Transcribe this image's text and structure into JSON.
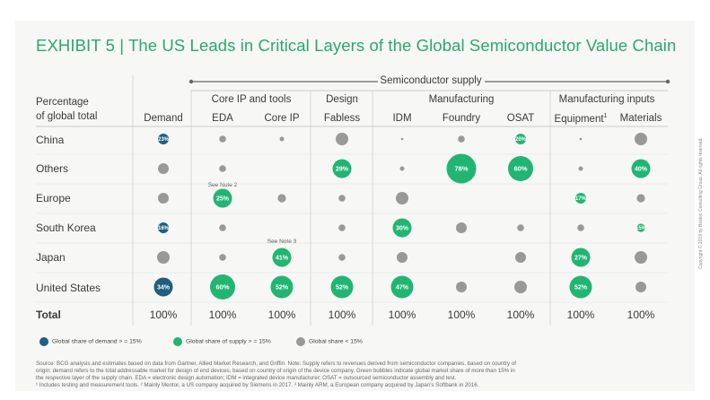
{
  "title": "EXHIBIT 5 | The US Leads in Critical Layers of the Global Semiconductor Value Chain",
  "colors": {
    "demand": "#1f5f80",
    "supply": "#21b573",
    "gray": "#999999",
    "title": "#2aa86b"
  },
  "chart_data": {
    "type": "bubble-table",
    "row_header": [
      "Percentage",
      "of global total"
    ],
    "supergroup": "Semiconductor supply",
    "groups": [
      {
        "label": "Core IP and tools"
      },
      {
        "label": "Design"
      },
      {
        "label": "Manufacturing"
      },
      {
        "label": "Manufacturing inputs"
      }
    ],
    "columns": [
      {
        "label": "Demand"
      },
      {
        "label": "EDA"
      },
      {
        "label": "Core IP"
      },
      {
        "label": "Fabless"
      },
      {
        "label": "IDM"
      },
      {
        "label": "Foundry"
      },
      {
        "label": "OSAT"
      },
      {
        "label": "Equipment",
        "sup": "1"
      },
      {
        "label": "Materials"
      }
    ],
    "rows": [
      {
        "label": "China",
        "cells": [
          {
            "kind": "demand",
            "label": "23%",
            "size": "m"
          },
          {
            "kind": "gray",
            "size": "s"
          },
          {
            "kind": "gray",
            "size": "xs"
          },
          {
            "kind": "gray",
            "size": "l"
          },
          {
            "kind": "gray",
            "size": "xxs"
          },
          {
            "kind": "gray",
            "size": "s"
          },
          {
            "kind": "supply",
            "label": "20%",
            "size": "m"
          },
          {
            "kind": "gray",
            "size": "xxs"
          },
          {
            "kind": "gray",
            "size": "l"
          }
        ]
      },
      {
        "label": "Others",
        "cells": [
          {
            "kind": "gray",
            "size": "m"
          },
          {
            "kind": "gray",
            "size": "s"
          },
          {
            "kind": "none"
          },
          {
            "kind": "supply",
            "label": "29%",
            "size": "ml"
          },
          {
            "kind": "gray",
            "size": "xs"
          },
          {
            "kind": "supply",
            "label": "78%",
            "size": "xl"
          },
          {
            "kind": "supply",
            "label": "60%",
            "size": "xl-"
          },
          {
            "kind": "gray",
            "size": "xs"
          },
          {
            "kind": "supply",
            "label": "40%",
            "size": "ml"
          }
        ]
      },
      {
        "label": "Europe",
        "cells": [
          {
            "kind": "gray",
            "size": "m"
          },
          {
            "kind": "supply",
            "label": "25%",
            "size": "ml",
            "note": "See Note 2"
          },
          {
            "kind": "gray",
            "size": "m-"
          },
          {
            "kind": "gray",
            "size": "s"
          },
          {
            "kind": "gray",
            "size": "l"
          },
          {
            "kind": "none"
          },
          {
            "kind": "none"
          },
          {
            "kind": "supply",
            "label": "17%",
            "size": "m"
          },
          {
            "kind": "gray",
            "size": "m-"
          }
        ]
      },
      {
        "label": "South Korea",
        "cells": [
          {
            "kind": "demand",
            "label": "16%",
            "size": "m"
          },
          {
            "kind": "gray",
            "size": "s"
          },
          {
            "kind": "none"
          },
          {
            "kind": "gray",
            "size": "s"
          },
          {
            "kind": "supply",
            "label": "30%",
            "size": "ml"
          },
          {
            "kind": "gray",
            "size": "m"
          },
          {
            "kind": "gray",
            "size": "s"
          },
          {
            "kind": "gray",
            "size": "s"
          },
          {
            "kind": "supply",
            "label": "15%",
            "size": "m-"
          }
        ]
      },
      {
        "label": "Japan",
        "cells": [
          {
            "kind": "gray",
            "size": "l"
          },
          {
            "kind": "gray",
            "size": "s"
          },
          {
            "kind": "supply",
            "label": "41%",
            "size": "ml",
            "note": "See Note 3"
          },
          {
            "kind": "gray",
            "size": "s"
          },
          {
            "kind": "gray",
            "size": "m"
          },
          {
            "kind": "none"
          },
          {
            "kind": "gray",
            "size": "m"
          },
          {
            "kind": "supply",
            "label": "27%",
            "size": "ml"
          },
          {
            "kind": "gray",
            "size": "l"
          }
        ]
      },
      {
        "label": "United States",
        "cells": [
          {
            "kind": "demand",
            "label": "34%",
            "size": "ml"
          },
          {
            "kind": "supply",
            "label": "60%",
            "size": "xl-"
          },
          {
            "kind": "supply",
            "label": "52%",
            "size": "l+"
          },
          {
            "kind": "supply",
            "label": "52%",
            "size": "l+"
          },
          {
            "kind": "supply",
            "label": "47%",
            "size": "l+"
          },
          {
            "kind": "gray",
            "size": "m"
          },
          {
            "kind": "gray",
            "size": "l"
          },
          {
            "kind": "supply",
            "label": "52%",
            "size": "l+"
          },
          {
            "kind": "gray",
            "size": "m"
          }
        ]
      }
    ],
    "total_label": "Total",
    "totals": [
      "100%",
      "100%",
      "100%",
      "100%",
      "100%",
      "100%",
      "100%",
      "100%",
      "100%"
    ],
    "legend": [
      {
        "kind": "demand",
        "label": "Global share of demand > = 15%"
      },
      {
        "kind": "supply",
        "label": "Global share of supply > = 15%"
      },
      {
        "kind": "gray",
        "label": "Global share < 15%"
      }
    ]
  },
  "footer": [
    "Source: BCG analysis and estimates based on data from Gartner, Allied Market Research, and Griffin. Note: Supply refers to revenues derived from semiconductor companies, based on country of",
    "origin; demand refers to the total addressable market for design of end devices, based on country of origin of the device company. Green bubbles indicate global market share of more than 15% in",
    "the respective layer of the supply chain. EDA = electronic design automation; IDM = integrated device manufacturer; OSAT = outsourced semiconductor assembly and test.",
    "¹ Includes testing and measurement tools. ² Mainly Mentor, a US company acquired by Siemens in 2017. ³ Mainly ARM, a European company acquired by Japan's Softbank in 2016."
  ],
  "copyright": "Copyright © 2019 by Boston Consulting Group. All rights reserved."
}
